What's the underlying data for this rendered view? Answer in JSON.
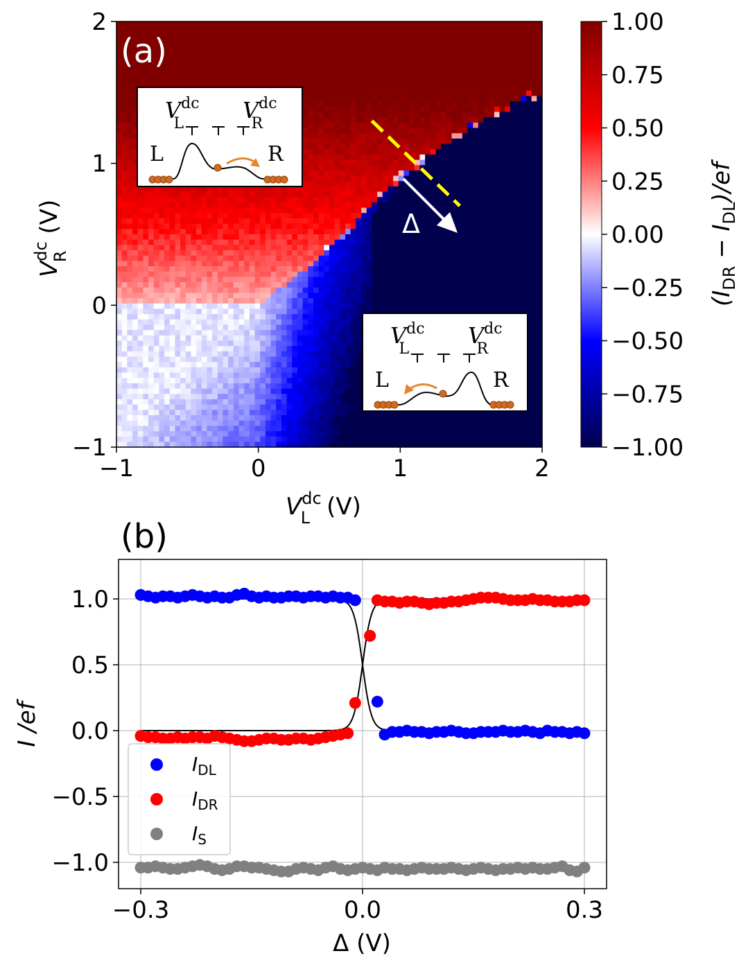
{
  "chart_data": [
    {
      "type": "heatmap",
      "panel_label": "(a)",
      "x_label": "V",
      "x_label_sup": "dc",
      "x_label_sub": "L",
      "x_unit": "(V)",
      "y_label": "V",
      "y_label_sup": "dc",
      "y_label_sub": "R",
      "y_unit": "(V)",
      "xlim": [
        -1,
        2
      ],
      "ylim": [
        -1,
        2
      ],
      "x_ticks": [
        "−1",
        "0",
        "1",
        "2"
      ],
      "y_ticks": [
        "−1",
        "0",
        "1",
        "2"
      ],
      "grid_size": 80,
      "boundary_points": [
        [
          -1.0,
          0.0
        ],
        [
          0.0,
          0.0
        ],
        [
          0.4,
          0.3
        ],
        [
          0.8,
          0.7
        ],
        [
          1.0,
          0.9
        ],
        [
          1.2,
          1.05
        ],
        [
          1.5,
          1.25
        ],
        [
          1.8,
          1.43
        ],
        [
          2.0,
          1.5
        ]
      ],
      "colorbar": {
        "label": "(I",
        "label_sub1": "DR",
        "label_mid": " − I",
        "label_sub2": "DL",
        "label_end": ")/ef",
        "range": [
          -1,
          1
        ],
        "ticks": [
          "1.00",
          "0.75",
          "0.50",
          "0.25",
          "0.00",
          "−0.25",
          "−0.50",
          "−0.75",
          "−1.00"
        ],
        "colors": [
          "#00004d",
          "#0000ff",
          "#ffffff",
          "#ff0000",
          "#800000"
        ]
      },
      "delta_line": {
        "label": "Δ",
        "from": [
          0.8,
          1.3
        ],
        "to": [
          1.42,
          0.7
        ],
        "color": "#ffff00"
      },
      "insets": [
        {
          "label_left": "L",
          "label_right": "R",
          "gate_left": "V",
          "gate_left_sup": "dc",
          "gate_left_sub": "L",
          "gate_right": "V",
          "gate_right_sup": "dc",
          "gate_right_sub": "R",
          "barrier": "left",
          "arrow": "right"
        },
        {
          "label_left": "L",
          "label_right": "R",
          "gate_left": "V",
          "gate_left_sup": "dc",
          "gate_left_sub": "L",
          "gate_right": "V",
          "gate_right_sup": "dc",
          "gate_right_sub": "R",
          "barrier": "right",
          "arrow": "left"
        }
      ]
    },
    {
      "type": "scatter",
      "panel_label": "(b)",
      "x_label": "Δ (V)",
      "y_label": "I /ef",
      "xlim": [
        -0.33,
        0.33
      ],
      "ylim": [
        -1.2,
        1.3
      ],
      "x_ticks": [
        {
          "v": -0.3,
          "t": "−0.3"
        },
        {
          "v": 0.0,
          "t": "0.0"
        },
        {
          "v": 0.3,
          "t": "0.3"
        }
      ],
      "y_ticks": [
        {
          "v": 1.0,
          "t": "1.0"
        },
        {
          "v": 0.5,
          "t": "0.5"
        },
        {
          "v": 0.0,
          "t": "0.0"
        },
        {
          "v": -0.5,
          "t": "−0.5"
        },
        {
          "v": -1.0,
          "t": "−1.0"
        }
      ],
      "grid": true,
      "legend_position": "center-left",
      "series": [
        {
          "name": "I",
          "sub": "DL",
          "color": "#0000ff",
          "x": [
            -0.3,
            -0.29,
            -0.28,
            -0.27,
            -0.26,
            -0.25,
            -0.24,
            -0.23,
            -0.22,
            -0.21,
            -0.2,
            -0.19,
            -0.18,
            -0.17,
            -0.16,
            -0.15,
            -0.14,
            -0.13,
            -0.12,
            -0.11,
            -0.1,
            -0.09,
            -0.08,
            -0.07,
            -0.06,
            -0.05,
            -0.04,
            -0.03,
            -0.02,
            -0.01,
            0.01,
            0.02,
            0.03,
            0.04,
            0.05,
            0.06,
            0.07,
            0.08,
            0.09,
            0.1,
            0.11,
            0.12,
            0.13,
            0.14,
            0.15,
            0.16,
            0.17,
            0.18,
            0.19,
            0.2,
            0.21,
            0.22,
            0.23,
            0.24,
            0.25,
            0.26,
            0.27,
            0.28,
            0.29,
            0.3
          ],
          "y": [
            1.03,
            1.02,
            1.01,
            1.02,
            1.02,
            1.01,
            1.02,
            1.03,
            1.02,
            1.01,
            1.02,
            1.01,
            1.01,
            1.03,
            1.04,
            1.02,
            1.01,
            1.02,
            1.01,
            1.01,
            1.02,
            1.02,
            1.01,
            1.02,
            1.02,
            1.01,
            1.02,
            1.01,
            1.01,
            0.99,
            0.72,
            0.22,
            -0.03,
            -0.01,
            -0.01,
            0.0,
            -0.01,
            -0.01,
            -0.02,
            -0.01,
            -0.01,
            0.0,
            -0.01,
            -0.02,
            -0.02,
            -0.01,
            -0.01,
            -0.01,
            0.0,
            -0.01,
            -0.01,
            0.0,
            -0.01,
            -0.02,
            0.0,
            -0.01,
            -0.01,
            -0.02,
            -0.01,
            -0.02
          ]
        },
        {
          "name": "I",
          "sub": "DR",
          "color": "#ff0000",
          "x": [
            -0.3,
            -0.29,
            -0.28,
            -0.27,
            -0.26,
            -0.25,
            -0.24,
            -0.23,
            -0.22,
            -0.21,
            -0.2,
            -0.19,
            -0.18,
            -0.17,
            -0.16,
            -0.15,
            -0.14,
            -0.13,
            -0.12,
            -0.11,
            -0.1,
            -0.09,
            -0.08,
            -0.07,
            -0.06,
            -0.05,
            -0.04,
            -0.03,
            -0.02,
            -0.01,
            0.01,
            0.02,
            0.03,
            0.04,
            0.05,
            0.06,
            0.07,
            0.08,
            0.09,
            0.1,
            0.11,
            0.12,
            0.13,
            0.14,
            0.15,
            0.16,
            0.17,
            0.18,
            0.19,
            0.2,
            0.21,
            0.22,
            0.23,
            0.24,
            0.25,
            0.26,
            0.27,
            0.28,
            0.29,
            0.3
          ],
          "y": [
            -0.04,
            -0.05,
            -0.05,
            -0.06,
            -0.06,
            -0.05,
            -0.06,
            -0.05,
            -0.05,
            -0.06,
            -0.04,
            -0.05,
            -0.06,
            -0.07,
            -0.08,
            -0.08,
            -0.07,
            -0.06,
            -0.06,
            -0.07,
            -0.07,
            -0.06,
            -0.06,
            -0.07,
            -0.06,
            -0.05,
            -0.04,
            -0.03,
            -0.02,
            0.21,
            0.72,
            0.99,
            0.98,
            0.98,
            0.97,
            0.98,
            0.98,
            0.97,
            0.96,
            0.97,
            0.97,
            0.98,
            0.98,
            0.99,
            1.0,
            1.01,
            1.01,
            1.01,
            1.0,
            0.99,
            0.99,
            0.99,
            1.0,
            0.99,
            0.99,
            0.98,
            0.98,
            0.98,
            0.99,
            0.99
          ]
        },
        {
          "name": "I",
          "sub": "S",
          "color": "#808080",
          "x": [
            -0.3,
            -0.29,
            -0.28,
            -0.27,
            -0.26,
            -0.25,
            -0.24,
            -0.23,
            -0.22,
            -0.21,
            -0.2,
            -0.19,
            -0.18,
            -0.17,
            -0.16,
            -0.15,
            -0.14,
            -0.13,
            -0.12,
            -0.11,
            -0.1,
            -0.09,
            -0.08,
            -0.07,
            -0.06,
            -0.05,
            -0.04,
            -0.03,
            -0.02,
            -0.01,
            0.0,
            0.01,
            0.02,
            0.03,
            0.04,
            0.05,
            0.06,
            0.07,
            0.08,
            0.09,
            0.1,
            0.11,
            0.12,
            0.13,
            0.14,
            0.15,
            0.16,
            0.17,
            0.18,
            0.19,
            0.2,
            0.21,
            0.22,
            0.23,
            0.24,
            0.25,
            0.26,
            0.27,
            0.28,
            0.29,
            0.3
          ],
          "y": [
            -1.04,
            -1.04,
            -1.03,
            -1.04,
            -1.05,
            -1.05,
            -1.04,
            -1.03,
            -1.02,
            -1.03,
            -1.05,
            -1.06,
            -1.05,
            -1.03,
            -1.03,
            -1.04,
            -1.04,
            -1.05,
            -1.06,
            -1.07,
            -1.07,
            -1.05,
            -1.04,
            -1.05,
            -1.06,
            -1.04,
            -1.03,
            -1.05,
            -1.06,
            -1.05,
            -1.04,
            -1.05,
            -1.06,
            -1.04,
            -1.05,
            -1.05,
            -1.06,
            -1.05,
            -1.04,
            -1.05,
            -1.05,
            -1.05,
            -1.04,
            -1.05,
            -1.06,
            -1.05,
            -1.04,
            -1.05,
            -1.06,
            -1.05,
            -1.05,
            -1.04,
            -1.05,
            -1.04,
            -1.05,
            -1.05,
            -1.04,
            -1.03,
            -1.06,
            -1.07,
            -1.04
          ]
        }
      ],
      "fit_curves": {
        "color": "#000000",
        "center": 0.0,
        "width": 0.006
      }
    }
  ]
}
